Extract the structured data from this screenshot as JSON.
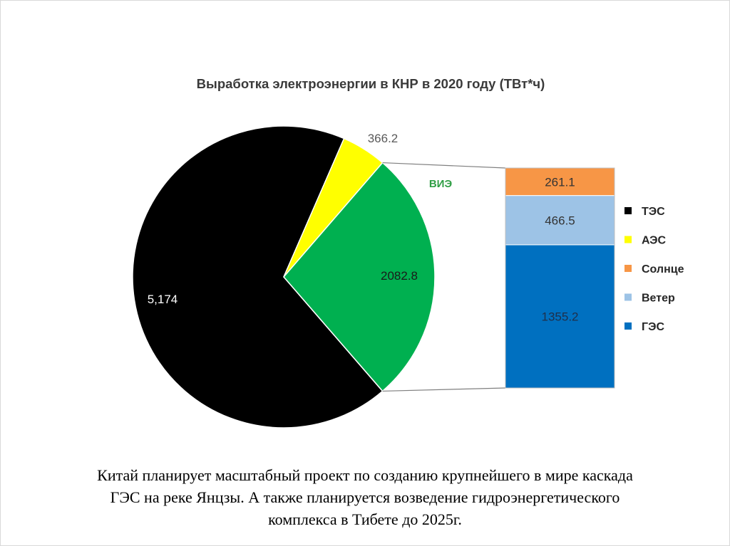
{
  "chart_data": {
    "type": "pie",
    "title": "Выработка электроэнергии в КНР в 2020 году (ТВт*ч)",
    "slices": [
      {
        "label_key": "ТЭС",
        "value": 5174,
        "value_label": "5,174",
        "color": "#000000"
      },
      {
        "label_key": "АЭС",
        "value": 366.2,
        "value_label": "366.2",
        "color": "#ffff00"
      },
      {
        "label_key": "ВИЭ",
        "value": 2082.8,
        "value_label": "2082.8",
        "color": "#00b050"
      }
    ],
    "group_label": "ВИЭ",
    "breakdown": {
      "type": "stacked-bar",
      "segments": [
        {
          "name": "Солнце",
          "value": 261.1,
          "value_label": "261.1",
          "color": "#f79646"
        },
        {
          "name": "Ветер",
          "value": 466.5,
          "value_label": "466.5",
          "color": "#9dc3e6"
        },
        {
          "name": "ГЭС",
          "value": 1355.2,
          "value_label": "1355.2",
          "color": "#0070c0"
        }
      ]
    },
    "legend": {
      "placement": "right",
      "items": [
        {
          "name": "ТЭС",
          "color": "#000000"
        },
        {
          "name": "АЭС",
          "color": "#ffff00"
        },
        {
          "name": "Солнце",
          "color": "#f79646"
        },
        {
          "name": "Ветер",
          "color": "#9dc3e6"
        },
        {
          "name": "ГЭС",
          "color": "#0070c0"
        }
      ]
    }
  },
  "caption": {
    "lines": [
      "Китай планирует масштабный проект по созданию крупнейшего в мире каскада",
      "ГЭС на реке Янцзы. А также планируется возведение гидроэнергетического",
      "комплекса в Тибете до 2025г."
    ]
  }
}
